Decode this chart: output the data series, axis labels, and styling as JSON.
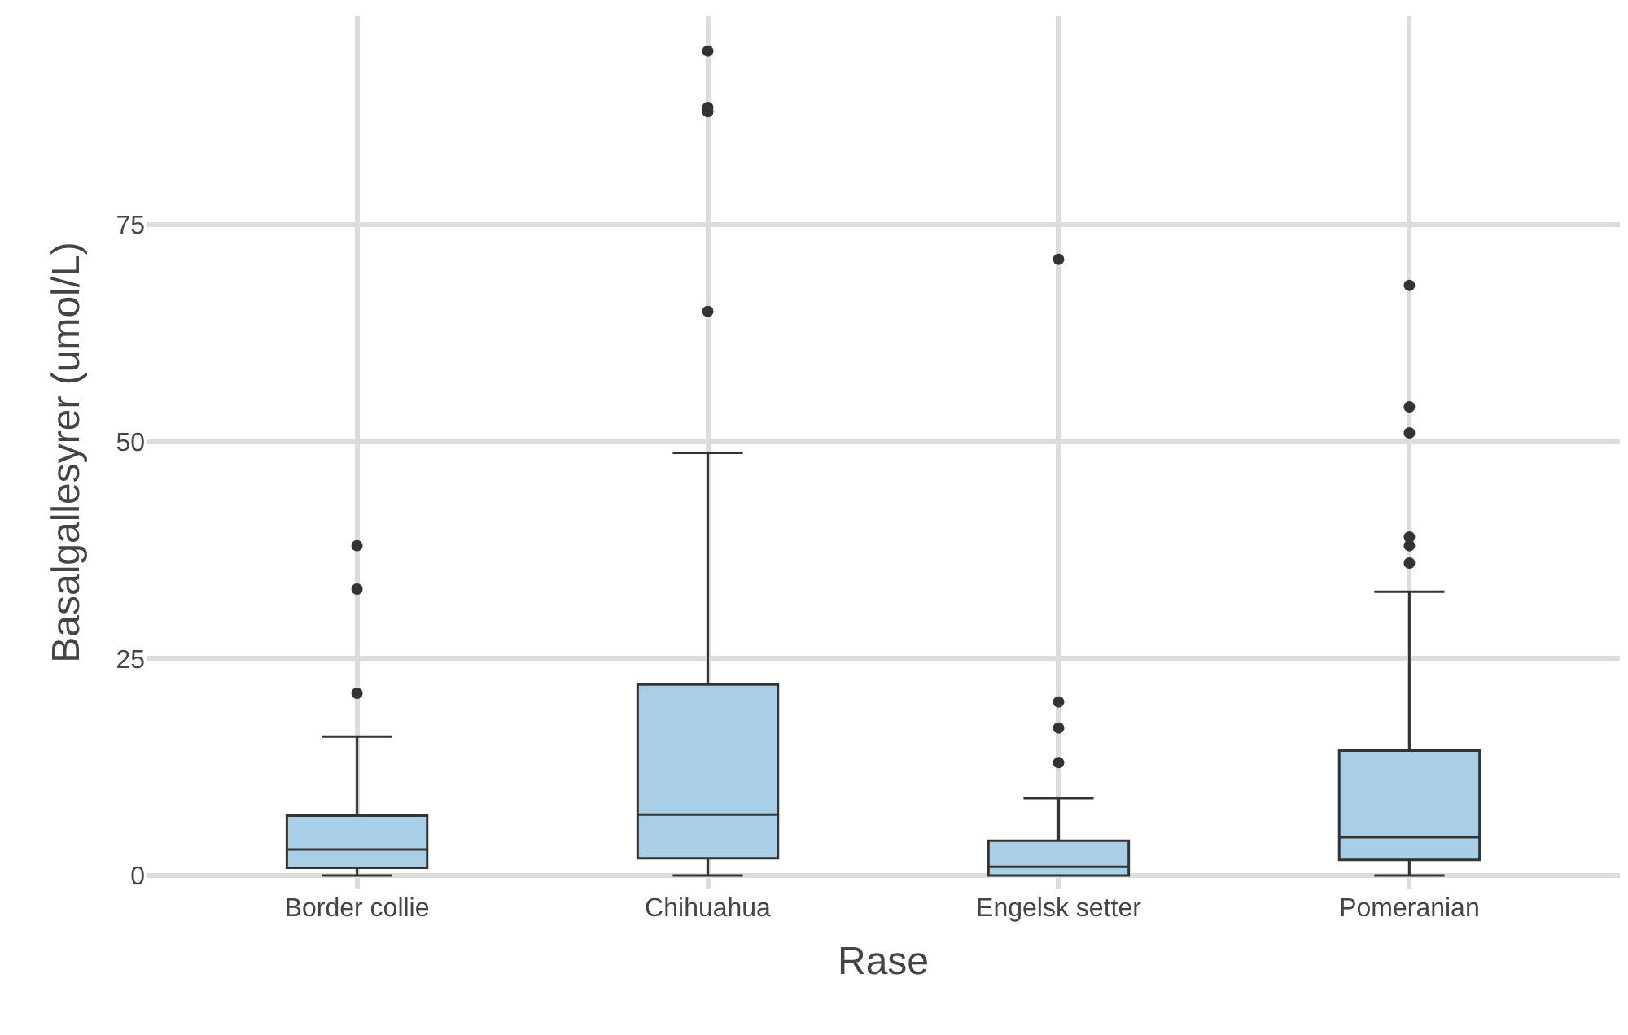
{
  "chart_data": {
    "type": "box",
    "xlabel": "Rase",
    "ylabel": "Basalgallesyrer (umol/L)",
    "categories": [
      "Border collie",
      "Chihuahua",
      "Engelsk setter",
      "Pomeranian"
    ],
    "color": "#a9cfe6",
    "boxes": [
      {
        "low": 0,
        "q1": 0.9,
        "median": 3,
        "q3": 6.9,
        "high": 16,
        "outliers": [
          38,
          33,
          21
        ]
      },
      {
        "low": 0,
        "q1": 2,
        "median": 7,
        "q3": 22,
        "high": 48.7,
        "outliers": [
          95,
          88.5,
          88,
          65
        ]
      },
      {
        "low": 0,
        "q1": 0,
        "median": 1,
        "q3": 4,
        "high": 8.9,
        "outliers": [
          71,
          20,
          17,
          13
        ]
      },
      {
        "low": 0,
        "q1": 1.8,
        "median": 4.4,
        "q3": 14.4,
        "high": 32.7,
        "outliers": [
          68,
          54,
          51,
          39,
          38,
          36
        ]
      }
    ],
    "ylim": [
      -1.5,
      99
    ],
    "yticks": [
      0,
      25,
      50,
      75
    ],
    "grid": true
  }
}
